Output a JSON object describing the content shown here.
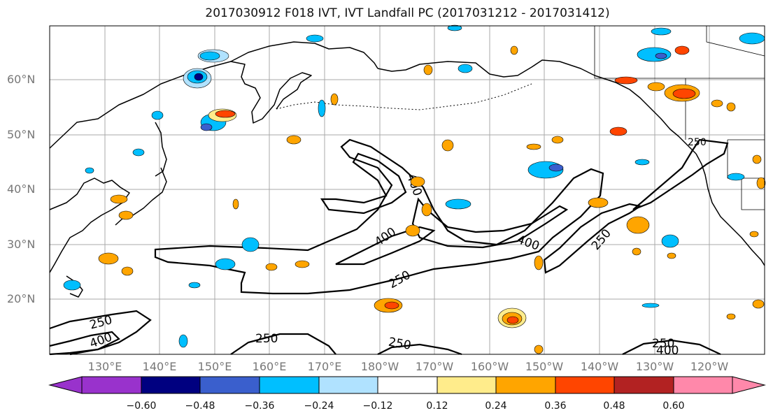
{
  "title": "2017030912 F018 IVT, IVT Landfall PC (2017031212 - 2017031412)",
  "lat_labels": [
    "60°N",
    "50°N",
    "40°N",
    "30°N",
    "20°N"
  ],
  "lon_labels": [
    "130°E",
    "140°E",
    "150°E",
    "160°E",
    "170°E",
    "180°W",
    "170°W",
    "160°W",
    "150°W",
    "140°W",
    "130°W",
    "120°W"
  ],
  "contour_labels": [
    "400",
    "400",
    "250",
    "400",
    "250",
    "250",
    "250",
    "250",
    "250",
    "400",
    "250",
    "400",
    "250"
  ],
  "colorbar": {
    "ticks": [
      "−0.60",
      "−0.48",
      "−0.36",
      "−0.24",
      "−0.12",
      "0.12",
      "0.24",
      "0.36",
      "0.48",
      "0.60"
    ],
    "colors": [
      "#9932cc",
      "#000080",
      "#3a5fcd",
      "#00bfff",
      "#b0e2ff",
      "#ffffff",
      "#ffec8b",
      "#ffa500",
      "#ff4500",
      "#b22222",
      "#ff88aa"
    ]
  }
}
